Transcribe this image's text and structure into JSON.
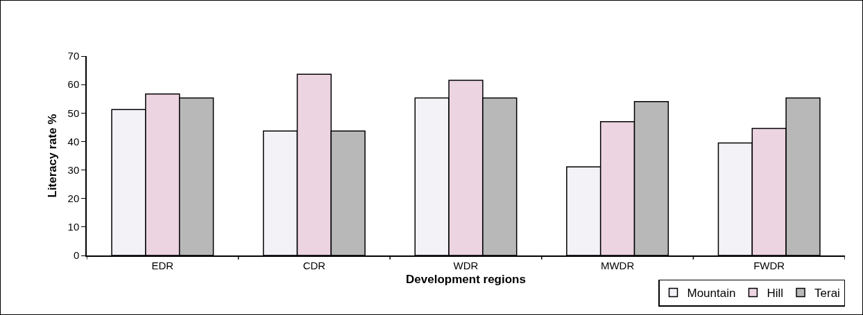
{
  "chart_data": {
    "type": "bar",
    "xlabel": "Development regions",
    "ylabel": "Literacy rate %",
    "categories": [
      "EDR",
      "CDR",
      "WDR",
      "MWDR",
      "FWDR"
    ],
    "series": [
      {
        "name": "Mountain",
        "color": "#f2f2f7",
        "values": [
          51.2,
          43.7,
          55.3,
          31.1,
          39.5
        ]
      },
      {
        "name": "Hill",
        "color": "#ecd4e0",
        "values": [
          56.7,
          63.6,
          61.5,
          47.0,
          44.6
        ]
      },
      {
        "name": "Terai",
        "color": "#b8b8b8",
        "values": [
          55.3,
          43.7,
          55.3,
          54.0,
          55.3
        ]
      }
    ],
    "ylim": [
      0,
      70
    ],
    "yticks": [
      0,
      10,
      20,
      30,
      40,
      50,
      60,
      70
    ],
    "grid": false,
    "legend": "bottom right"
  }
}
